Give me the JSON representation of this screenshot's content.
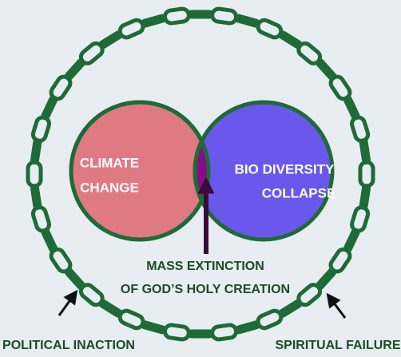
{
  "circles": [
    {
      "label_lines": [
        "CLIMATE",
        "CHANGE"
      ]
    },
    {
      "label_lines": [
        "BIO DIVERSITY",
        "COLLAPSE"
      ]
    }
  ],
  "center_label": [
    "MASS EXTINCTION",
    "OF GOD’S HOLY CREATION"
  ],
  "bottom_labels": [
    "POLITICAL INACTION",
    "SPIRITUAL FAILURE"
  ]
}
